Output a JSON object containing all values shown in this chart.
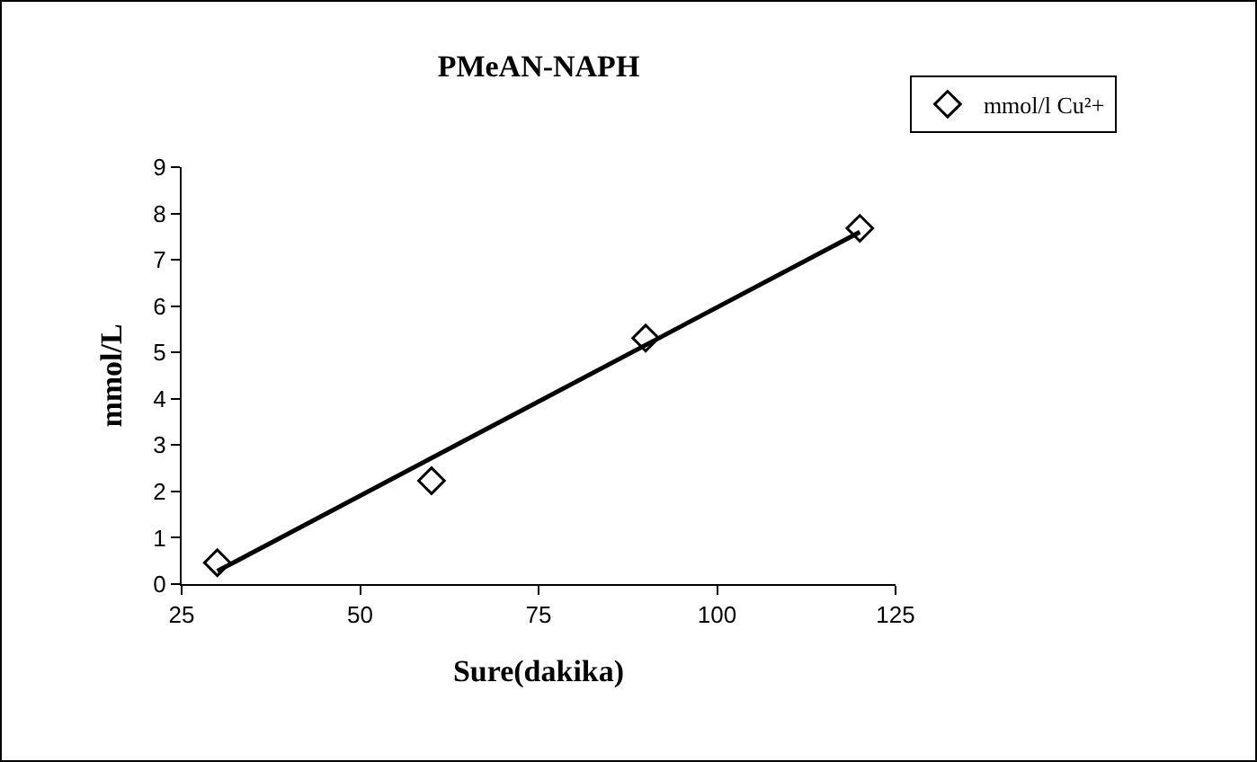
{
  "chart_data": {
    "type": "scatter",
    "title": "PMeAN-NAPH",
    "xlabel": "Sure(dakika)",
    "ylabel": "mmol/L",
    "x": [
      30,
      60,
      90,
      120
    ],
    "series": [
      {
        "name": "mmol/l Cu²+",
        "color": "#000000",
        "values": [
          0.46,
          2.23,
          5.31,
          7.68
        ],
        "marker": "diamond"
      },
      {
        "type": "line",
        "color": "#000000",
        "x": [
          30,
          120
        ],
        "values": [
          0.28,
          7.6
        ],
        "marker": "none",
        "line_style": "solid"
      }
    ],
    "xlim": [
      25,
      125
    ],
    "xticks": [
      25,
      50,
      75,
      100,
      125
    ],
    "ylim": [
      0,
      9
    ],
    "yticks": [
      0,
      1,
      2,
      3,
      4,
      5,
      6,
      7,
      8,
      9
    ],
    "grid": false,
    "legend": "top right"
  }
}
